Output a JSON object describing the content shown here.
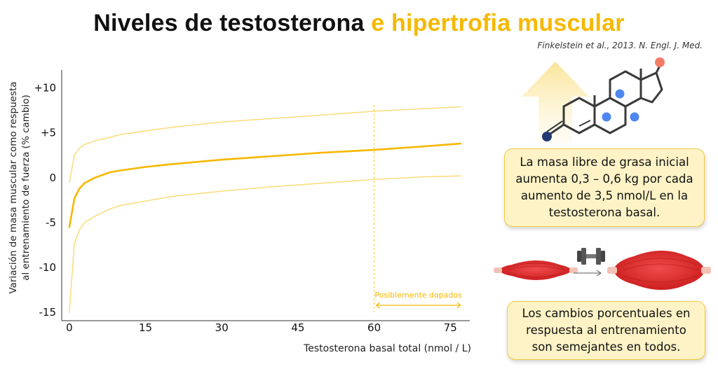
{
  "title": {
    "main": "Niveles de testosterona",
    "accent": "e hipertrofia muscular"
  },
  "citation": "Finkelstein et al., 2013. N. Engl. J. Med.",
  "chart_data": {
    "type": "line",
    "title": "Niveles de testosterona e hipertrofia muscular",
    "ylabel_line1": "Variación de masa muscular como respuesta",
    "ylabel_line2": "al entrenamiento de fuerza (% cambio)",
    "xlabel": "Testosterona basal total (nmol / L)",
    "xlim": [
      -1.5,
      78
    ],
    "ylim": [
      -15,
      12
    ],
    "x_ticks": [
      0,
      15,
      30,
      45,
      60,
      75
    ],
    "x_tick_labels": [
      "0",
      "15",
      "30",
      "45",
      "60",
      "75"
    ],
    "y_ticks": [
      10,
      5,
      0,
      -5,
      -10,
      -15
    ],
    "y_tick_labels": [
      "+10",
      "+5",
      "0",
      "-5",
      "-10",
      "-15"
    ],
    "grid": false,
    "legend": "none",
    "colors": {
      "mean": "#f6b800",
      "ci": "#f9dc7a",
      "annotation": "#f6b800"
    },
    "series": [
      {
        "role": "mean",
        "x": [
          0,
          1,
          2,
          3,
          5,
          8,
          10,
          15,
          20,
          30,
          40,
          50,
          60,
          70,
          77
        ],
        "y": [
          -5.5,
          -2.3,
          -1.2,
          -0.6,
          0,
          0.6,
          0.8,
          1.2,
          1.5,
          2.0,
          2.4,
          2.8,
          3.1,
          3.5,
          3.8
        ]
      },
      {
        "role": "upper",
        "x": [
          0,
          1,
          2,
          3,
          5,
          8,
          10,
          15,
          20,
          30,
          40,
          50,
          60,
          70,
          77
        ],
        "y": [
          -0.5,
          2.5,
          3.3,
          3.7,
          4.1,
          4.5,
          4.8,
          5.2,
          5.6,
          6.2,
          6.6,
          7.0,
          7.4,
          7.7,
          7.9
        ]
      },
      {
        "role": "lower",
        "x": [
          0,
          1,
          2,
          3,
          5,
          8,
          10,
          15,
          20,
          30,
          40,
          50,
          60,
          70,
          77
        ],
        "y": [
          -15,
          -7.3,
          -5.8,
          -5.0,
          -4.3,
          -3.5,
          -3.1,
          -2.6,
          -2.1,
          -1.5,
          -1.0,
          -0.6,
          -0.2,
          0.1,
          0.2
        ]
      }
    ],
    "annotations": [
      {
        "type": "vline",
        "x": 60,
        "label": "Posiblemente dopados",
        "arrow_x": [
          60,
          77
        ]
      }
    ]
  },
  "boxes": {
    "fat_free_mass": "La masa libre de grasa inicial aumenta 0,3 – 0,6 kg por cada aumento de 3,5 nmol/L en la testosterona basal.",
    "percent_changes": "Los cambios porcentuales en respuesta al entrenamiento son semejantes en todos."
  },
  "icons": [
    "up-arrow-icon",
    "testosterone-molecule-icon",
    "muscle-small-icon",
    "dumbbell-icon",
    "arrow-right-icon",
    "muscle-large-icon"
  ]
}
